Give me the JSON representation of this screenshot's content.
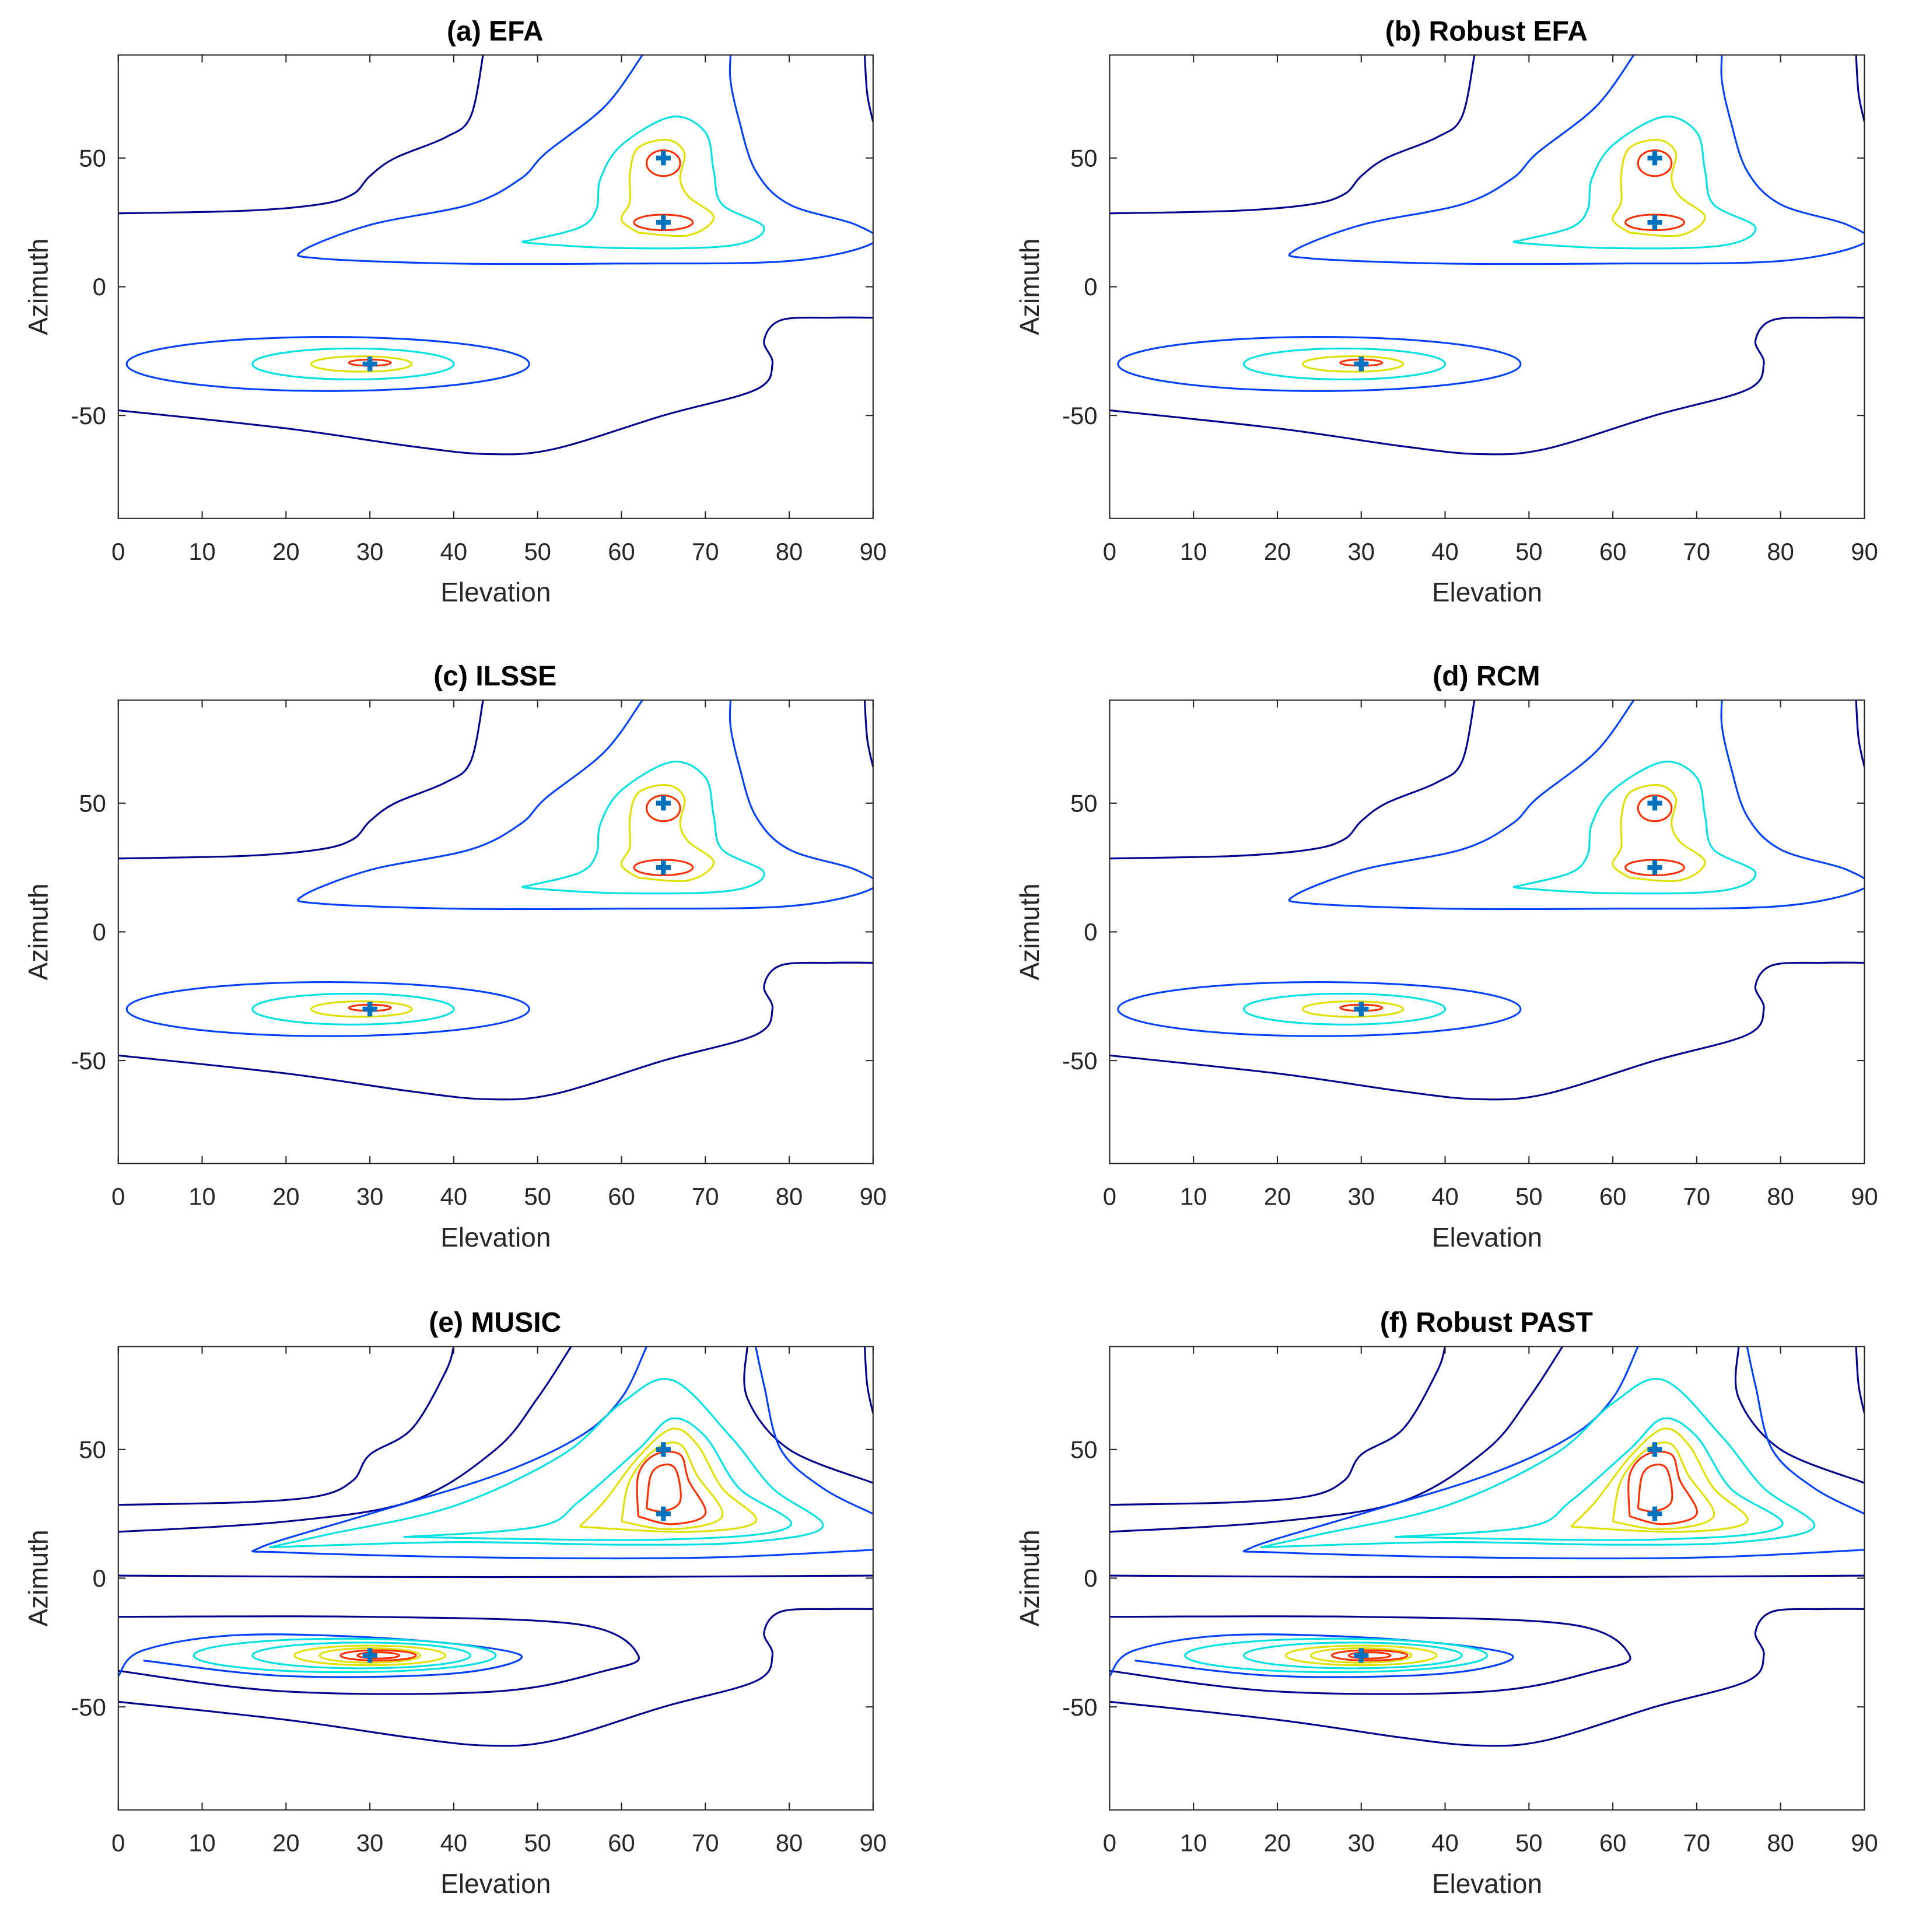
{
  "chart_data": {
    "type": "contour",
    "xlabel": "Elevation",
    "ylabel": "Azimuth",
    "xlim": [
      0,
      90
    ],
    "ylim": [
      -90,
      90
    ],
    "xticks": [
      0,
      10,
      20,
      30,
      40,
      50,
      60,
      70,
      80,
      90
    ],
    "yticks": [
      -50,
      0,
      50
    ],
    "sources": [
      [
        30,
        -30
      ],
      [
        65,
        50
      ],
      [
        65,
        25
      ]
    ],
    "marker_color": "#0072BD",
    "level_colors": [
      "#00008F",
      "#0040FF",
      "#00E0E0",
      "#E0E000",
      "#FF3000"
    ],
    "panels": [
      {
        "title": "(a) EFA",
        "style": "sparse"
      },
      {
        "title": "(b) Robust EFA",
        "style": "sparse"
      },
      {
        "title": "(c) ILSSE",
        "style": "sparse"
      },
      {
        "title": "(d) RCM",
        "style": "sparse"
      },
      {
        "title": "(e) MUSIC",
        "style": "dense"
      },
      {
        "title": "(f) Robust PAST",
        "style": "dense"
      }
    ],
    "contours_sparse": [
      {
        "level": 0,
        "pts": [
          [
            0,
            28.5
          ],
          [
            15,
            29.5
          ],
          [
            24,
            32
          ],
          [
            28,
            36
          ],
          [
            30,
            43
          ],
          [
            33,
            50
          ],
          [
            39,
            58
          ],
          [
            42,
            66
          ],
          [
            43.5,
            90
          ]
        ]
      },
      {
        "level": 0,
        "pts": [
          [
            0,
            -48
          ],
          [
            20,
            -55
          ],
          [
            35,
            -62
          ],
          [
            44,
            -65
          ],
          [
            52,
            -63
          ],
          [
            65,
            -50
          ],
          [
            76,
            -40
          ],
          [
            78,
            -30
          ],
          [
            77,
            -21
          ],
          [
            79,
            -13
          ],
          [
            85,
            -12
          ],
          [
            90,
            -12
          ]
        ]
      },
      {
        "level": 0,
        "pts": [
          [
            89,
            90
          ],
          [
            89.3,
            75
          ],
          [
            90,
            64
          ]
        ]
      },
      {
        "level": 1,
        "pts": [
          [
            62.5,
            90
          ],
          [
            58,
            70
          ],
          [
            51,
            52
          ],
          [
            48,
            42
          ],
          [
            42,
            32
          ],
          [
            30,
            24
          ],
          [
            22,
            14
          ],
          [
            24,
            11
          ],
          [
            40,
            9
          ],
          [
            60,
            9
          ],
          [
            80,
            10
          ],
          [
            90,
            17
          ],
          [
            88,
            24
          ],
          [
            80,
            32
          ],
          [
            76,
            45
          ],
          [
            74,
            65
          ],
          [
            73,
            80
          ],
          [
            73,
            90
          ]
        ]
      },
      {
        "level": 1,
        "ellipse": [
          25,
          -30,
          24,
          10.5
        ]
      },
      {
        "level": 2,
        "pts": [
          [
            49,
            18
          ],
          [
            55,
            23
          ],
          [
            57,
            30
          ],
          [
            57.5,
            42
          ],
          [
            60,
            55
          ],
          [
            66,
            66
          ],
          [
            70,
            60
          ],
          [
            71,
            45
          ],
          [
            72,
            32
          ],
          [
            77,
            23
          ],
          [
            73,
            16
          ],
          [
            60,
            15
          ],
          [
            49,
            17
          ],
          [
            49,
            18
          ]
        ]
      },
      {
        "level": 2,
        "ellipse": [
          28,
          -30,
          12,
          6
        ]
      },
      {
        "level": 3,
        "pts": [
          [
            62,
            21
          ],
          [
            60,
            26
          ],
          [
            61,
            33
          ],
          [
            61,
            44
          ],
          [
            62,
            54
          ],
          [
            65.5,
            57
          ],
          [
            67.5,
            52
          ],
          [
            67,
            42
          ],
          [
            68,
            35
          ],
          [
            71,
            27
          ],
          [
            68,
            20
          ],
          [
            62,
            21
          ]
        ]
      },
      {
        "level": 3,
        "ellipse": [
          29,
          -30,
          6,
          3
        ]
      },
      {
        "level": 4,
        "ellipse": [
          65,
          48,
          2,
          5
        ]
      },
      {
        "level": 4,
        "ellipse": [
          65,
          25,
          3.5,
          3
        ]
      },
      {
        "level": 4,
        "ellipse": [
          30,
          -29.5,
          2.5,
          1.2
        ]
      }
    ],
    "contours_dense": [
      {
        "level": 0,
        "pts": [
          [
            0,
            28.5
          ],
          [
            15,
            29.5
          ],
          [
            24,
            32
          ],
          [
            28,
            38
          ],
          [
            30,
            48
          ],
          [
            35,
            58
          ],
          [
            39,
            80
          ],
          [
            40,
            90
          ]
        ]
      },
      {
        "level": 0,
        "pts": [
          [
            0,
            -48
          ],
          [
            20,
            -55
          ],
          [
            35,
            -62
          ],
          [
            44,
            -65
          ],
          [
            52,
            -63
          ],
          [
            65,
            -50
          ],
          [
            76,
            -40
          ],
          [
            78,
            -30
          ],
          [
            77,
            -21
          ],
          [
            79,
            -13
          ],
          [
            85,
            -12
          ],
          [
            90,
            -12
          ]
        ]
      },
      {
        "level": 0,
        "pts": [
          [
            89,
            90
          ],
          [
            89.3,
            75
          ],
          [
            90,
            64
          ]
        ]
      },
      {
        "level": 0,
        "pts": [
          [
            0,
            1
          ],
          [
            30,
            0.5
          ],
          [
            60,
            0.5
          ],
          [
            90,
            1
          ]
        ]
      },
      {
        "level": 0,
        "pts": [
          [
            0,
            18
          ],
          [
            20,
            22
          ],
          [
            35,
            30
          ],
          [
            45,
            50
          ],
          [
            50,
            70
          ],
          [
            54,
            90
          ]
        ]
      },
      {
        "level": 0,
        "pts": [
          [
            0,
            -36
          ],
          [
            20,
            -44
          ],
          [
            45,
            -44
          ],
          [
            58,
            -36
          ],
          [
            62,
            -30
          ],
          [
            55,
            -18
          ],
          [
            30,
            -15
          ],
          [
            0,
            -15
          ]
        ]
      },
      {
        "level": 1,
        "pts": [
          [
            0,
            -38
          ],
          [
            3,
            -28
          ],
          [
            15,
            -22
          ],
          [
            35,
            -24
          ],
          [
            48,
            -30
          ],
          [
            40,
            -37
          ],
          [
            20,
            -38
          ],
          [
            3,
            -32
          ]
        ]
      },
      {
        "level": 0,
        "pts": [
          [
            75,
            90
          ],
          [
            75,
            70
          ],
          [
            80,
            50
          ],
          [
            90,
            37
          ]
        ]
      },
      {
        "level": 1,
        "pts": [
          [
            63,
            90
          ],
          [
            60,
            70
          ],
          [
            55,
            55
          ],
          [
            45,
            40
          ],
          [
            30,
            25
          ],
          [
            17,
            12
          ],
          [
            20,
            10
          ],
          [
            45,
            8
          ],
          [
            70,
            8
          ],
          [
            90,
            11
          ]
        ]
      },
      {
        "level": 1,
        "pts": [
          [
            90,
            25
          ],
          [
            84,
            35
          ],
          [
            79,
            50
          ],
          [
            77,
            75
          ],
          [
            76,
            90
          ]
        ]
      },
      {
        "level": 2,
        "pts": [
          [
            18,
            12
          ],
          [
            40,
            14
          ],
          [
            60,
            13
          ],
          [
            75,
            14
          ],
          [
            84,
            20
          ],
          [
            78,
            35
          ],
          [
            73,
            55
          ],
          [
            66,
            77
          ],
          [
            60,
            68
          ],
          [
            53,
            48
          ],
          [
            40,
            28
          ],
          [
            25,
            17
          ],
          [
            18,
            12
          ]
        ]
      },
      {
        "level": 2,
        "ellipse": [
          27,
          -30,
          18,
          6.5
        ]
      },
      {
        "level": 2,
        "pts": [
          [
            34,
            16
          ],
          [
            50,
            20
          ],
          [
            55,
            30
          ],
          [
            62,
            50
          ],
          [
            66,
            62
          ],
          [
            70,
            55
          ],
          [
            74,
            35
          ],
          [
            80,
            20
          ],
          [
            65,
            15
          ],
          [
            34,
            16
          ]
        ]
      },
      {
        "level": 2,
        "ellipse": [
          29,
          -30,
          13,
          5
        ]
      },
      {
        "level": 3,
        "pts": [
          [
            55,
            20
          ],
          [
            58,
            30
          ],
          [
            62,
            47
          ],
          [
            66,
            58
          ],
          [
            69,
            52
          ],
          [
            72,
            35
          ],
          [
            76,
            22
          ],
          [
            68,
            18
          ],
          [
            55,
            20
          ]
        ]
      },
      {
        "level": 3,
        "ellipse": [
          30,
          -30,
          9,
          3.8
        ]
      },
      {
        "level": 3,
        "pts": [
          [
            60,
            22
          ],
          [
            61,
            38
          ],
          [
            64,
            50
          ],
          [
            67,
            52
          ],
          [
            69,
            40
          ],
          [
            72,
            24
          ],
          [
            66,
            19
          ],
          [
            60,
            22
          ]
        ]
      },
      {
        "level": 3,
        "ellipse": [
          30,
          -30,
          6,
          2.8
        ]
      },
      {
        "level": 4,
        "pts": [
          [
            62,
            24
          ],
          [
            62,
            40
          ],
          [
            64,
            48
          ],
          [
            67,
            48
          ],
          [
            68,
            38
          ],
          [
            70,
            25
          ],
          [
            66,
            21
          ],
          [
            62,
            24
          ]
        ]
      },
      {
        "level": 4,
        "ellipse": [
          31,
          -30,
          4.5,
          2
        ]
      },
      {
        "level": 4,
        "pts": [
          [
            63,
            27
          ],
          [
            63.5,
            40
          ],
          [
            65,
            44
          ],
          [
            66.5,
            42
          ],
          [
            67,
            30
          ],
          [
            65,
            26
          ],
          [
            63,
            27
          ]
        ]
      },
      {
        "level": 4,
        "ellipse": [
          31,
          -30,
          2.5,
          1.2
        ]
      }
    ]
  }
}
